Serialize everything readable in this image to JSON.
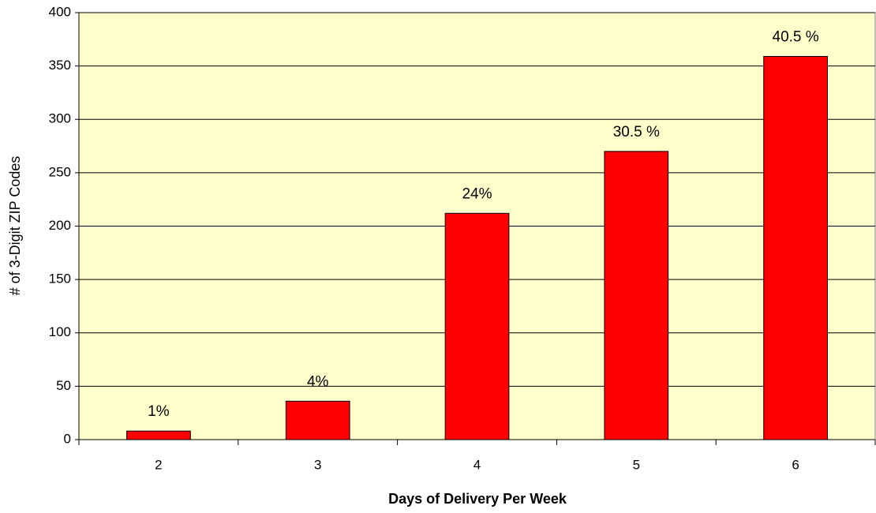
{
  "chart_data": {
    "type": "bar",
    "x_label": "Days of Delivery Per Week",
    "y_label": "# of 3-Digit ZIP Codes",
    "categories": [
      "2",
      "3",
      "4",
      "5",
      "6"
    ],
    "values": [
      8,
      36,
      212,
      270,
      359
    ],
    "bar_labels": [
      "1%",
      "4%",
      "24%",
      "30.5 %",
      "40.5 %"
    ],
    "color": "#ff0000",
    "ylim": [
      0,
      400
    ],
    "yticks": [
      0,
      50,
      100,
      150,
      200,
      250,
      300,
      350,
      400
    ],
    "grid": true
  }
}
